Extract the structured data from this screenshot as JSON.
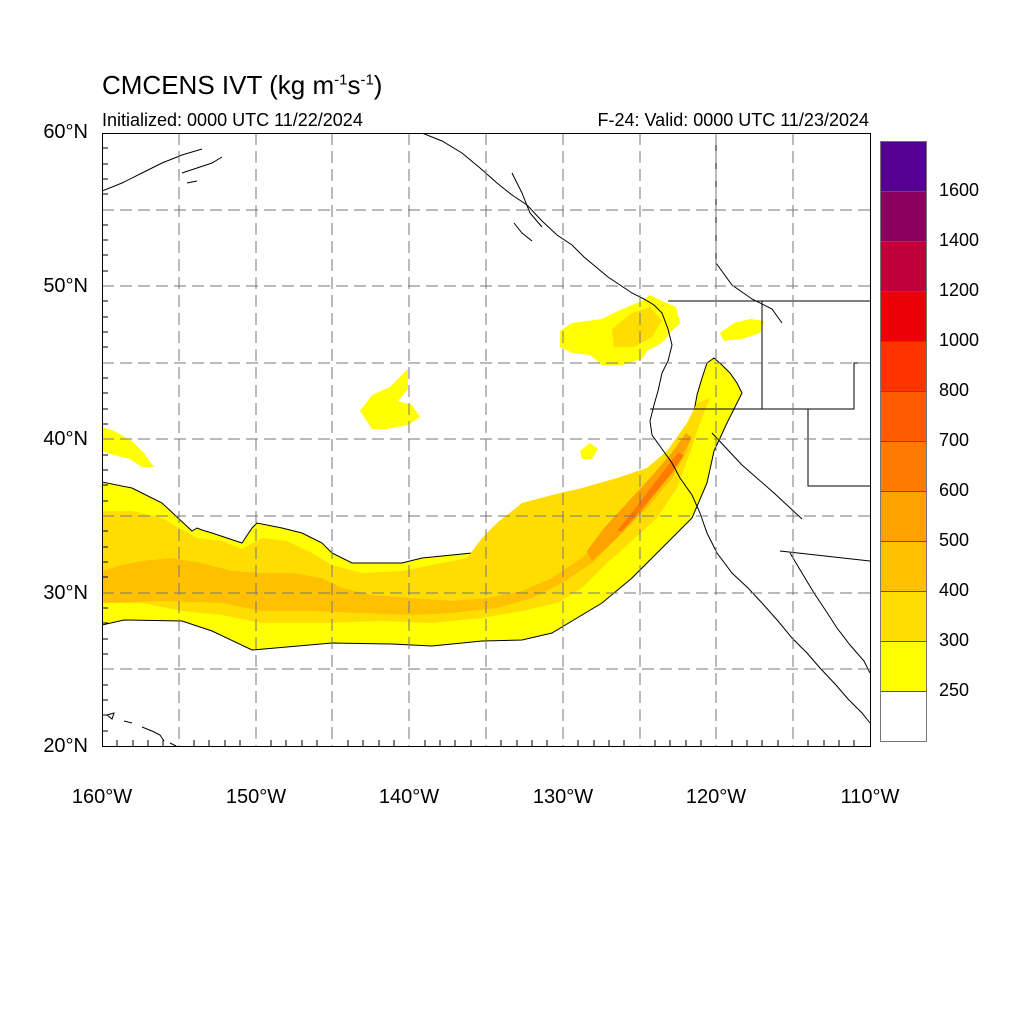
{
  "header": {
    "title_main": "CMCENS IVT (kg m",
    "title_sup1": "-1",
    "title_mid": "s",
    "title_sup2": "-1",
    "title_end": ")",
    "init": "Initialized: 0000 UTC 11/22/2024",
    "valid": "F-24: Valid: 0000 UTC 11/23/2024"
  },
  "axes": {
    "lat_labels": [
      "60°N",
      "50°N",
      "40°N",
      "30°N",
      "20°N"
    ],
    "lon_labels": [
      "160°W",
      "150°W",
      "140°W",
      "130°W",
      "120°W",
      "110°W"
    ],
    "lat_range": [
      20,
      60
    ],
    "lon_range": [
      -160,
      -110
    ],
    "grid": "dashed, every 5°"
  },
  "colorbar": {
    "labels": [
      "1600",
      "1400",
      "1200",
      "1000",
      "800",
      "700",
      "600",
      "500",
      "400",
      "300",
      "250"
    ],
    "colors": [
      "#560092",
      "#8b005f",
      "#bf0039",
      "#ec0008",
      "#ff3300",
      "#ff5a00",
      "#ff7a00",
      "#ffa200",
      "#ffc000",
      "#ffdd00",
      "#ffff00",
      "#ffffff"
    ]
  },
  "map": {
    "land_color": "#ffffff",
    "coast_color": "#000000",
    "ivt_colors": {
      "250": "#ffff00",
      "300": "#ffdd00",
      "400": "#ffc000",
      "500": "#ffa200",
      "600": "#ff7a00"
    }
  }
}
